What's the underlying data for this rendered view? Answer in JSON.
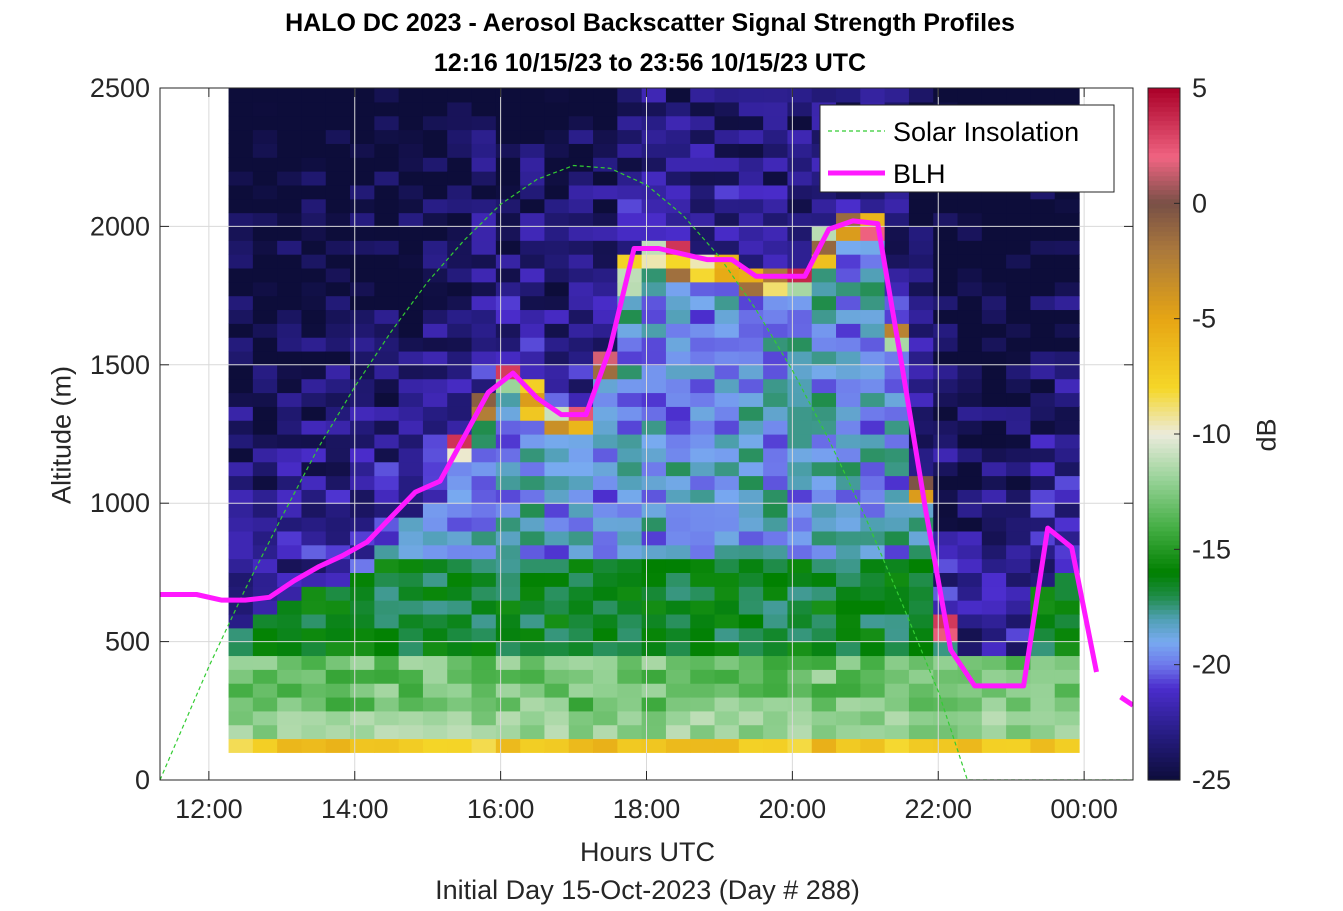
{
  "chart_data": {
    "type": "heatmap",
    "title": "HALO DC 2023 - Aerosol Backscatter Signal Strength Profiles",
    "subtitle": "12:16 10/15/23 to 23:56 10/15/23  UTC",
    "xlabel": "Hours UTC",
    "ylabel": "Altitude (m)",
    "note": "Initial Day 15-Oct-2023 (Day # 288)",
    "colorbar_label": "dB",
    "xlim": [
      11.33,
      24.67
    ],
    "ylim": [
      0,
      2500
    ],
    "clim": [
      -25,
      5
    ],
    "x_ticks": [
      12,
      14,
      16,
      18,
      20,
      22,
      24
    ],
    "x_tick_labels": [
      "12:00",
      "14:00",
      "16:00",
      "18:00",
      "20:00",
      "22:00",
      "00:00"
    ],
    "y_ticks": [
      0,
      500,
      1000,
      1500,
      2000,
      2500
    ],
    "y_tick_labels": [
      "0",
      "500",
      "1000",
      "1500",
      "2000",
      "2500"
    ],
    "colorbar_ticks": [
      -25,
      -20,
      -15,
      -10,
      -5,
      0,
      5
    ],
    "colorbar_tick_labels": [
      "-25",
      "-20",
      "-15",
      "-10",
      "-5",
      "0",
      "5"
    ],
    "grid": true,
    "legend_position": "top-right",
    "heatmap": {
      "x_start_hour": 12.27,
      "x_end_hour": 23.93,
      "time_bins": 35,
      "alt_start_m": 100,
      "alt_end_m": 2500,
      "alt_bin_m": 50
    },
    "series": [
      {
        "name": "Solar Insolation",
        "style": "dashed",
        "color": "#33cc33",
        "x": [
          11.33,
          12.0,
          12.5,
          13.0,
          13.5,
          14.0,
          14.5,
          15.0,
          15.5,
          16.0,
          16.5,
          17.0,
          17.5,
          18.0,
          18.5,
          19.0,
          19.5,
          20.0,
          20.5,
          21.0,
          21.5,
          22.0,
          22.4,
          23.0,
          24.67
        ],
        "y": [
          0,
          410,
          690,
          950,
          1200,
          1420,
          1620,
          1800,
          1950,
          2080,
          2170,
          2220,
          2210,
          2150,
          2040,
          1890,
          1700,
          1480,
          1230,
          950,
          640,
          320,
          0,
          0,
          0
        ]
      },
      {
        "name": "BLH",
        "style": "solid",
        "color": "#ff19ff",
        "x": [
          11.33,
          11.83,
          12.17,
          12.5,
          12.83,
          13.17,
          13.5,
          13.83,
          14.17,
          14.5,
          14.83,
          15.17,
          15.5,
          15.83,
          16.17,
          16.5,
          16.83,
          17.17,
          17.5,
          17.83,
          18.17,
          18.5,
          18.83,
          19.17,
          19.5,
          19.83,
          20.17,
          20.5,
          20.83,
          21.17,
          21.5,
          21.83,
          22.17,
          22.5,
          22.83,
          23.17,
          23.5,
          23.83,
          24.17
        ],
        "y": [
          670,
          670,
          650,
          650,
          660,
          720,
          770,
          810,
          860,
          950,
          1040,
          1080,
          1240,
          1400,
          1470,
          1380,
          1320,
          1320,
          1560,
          1920,
          1920,
          1900,
          1880,
          1880,
          1820,
          1820,
          1820,
          1990,
          2020,
          2010,
          1500,
          970,
          470,
          340,
          340,
          340,
          910,
          840,
          390
        ]
      },
      {
        "name": "BLH-tail",
        "style": "solid",
        "color": "#ff19ff",
        "x": [
          24.5,
          24.67
        ],
        "y": [
          300,
          270
        ]
      }
    ],
    "legend": [
      "Solar Insolation",
      "BLH"
    ]
  }
}
